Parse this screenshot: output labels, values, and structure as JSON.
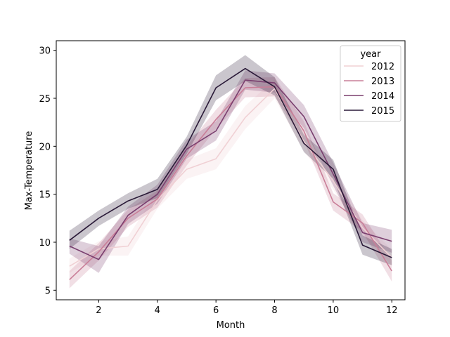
{
  "chart_data": {
    "type": "line",
    "title": "",
    "xlabel": "Month",
    "ylabel": "Max-Temperature",
    "xlim": [
      0.55,
      12.45
    ],
    "ylim": [
      4.0,
      31.0
    ],
    "xticks": [
      2,
      4,
      6,
      8,
      10,
      12
    ],
    "yticks": [
      5,
      10,
      15,
      20,
      25,
      30
    ],
    "grid": false,
    "legend": {
      "title": "year",
      "position": "top-right"
    },
    "x": [
      1,
      2,
      3,
      4,
      5,
      6,
      7,
      8,
      9,
      10,
      11,
      12
    ],
    "series": [
      {
        "name": "2012",
        "color": "#f0d0d4",
        "values": [
          7.5,
          9.3,
          9.6,
          14.4,
          17.6,
          18.7,
          23.0,
          26.0,
          20.5,
          16.4,
          11.5,
          8.4
        ],
        "ci_low": [
          6.8,
          8.6,
          8.6,
          13.5,
          16.6,
          17.6,
          21.8,
          25.0,
          19.5,
          15.5,
          10.7,
          7.6
        ],
        "ci_high": [
          8.3,
          10.1,
          10.6,
          15.3,
          18.6,
          19.8,
          24.2,
          27.0,
          21.5,
          17.3,
          12.3,
          9.2
        ]
      },
      {
        "name": "2013",
        "color": "#c97e98",
        "values": [
          6.1,
          9.0,
          12.5,
          14.5,
          19.0,
          22.8,
          26.1,
          26.2,
          21.6,
          14.2,
          12.0,
          7.0
        ],
        "ci_low": [
          5.2,
          8.1,
          11.6,
          13.6,
          18.0,
          21.8,
          25.1,
          25.2,
          20.6,
          13.3,
          11.1,
          5.9
        ],
        "ci_high": [
          7.0,
          9.9,
          13.4,
          15.4,
          20.0,
          23.8,
          27.1,
          27.2,
          22.6,
          15.1,
          12.9,
          8.1
        ]
      },
      {
        "name": "2014",
        "color": "#7a3f6f",
        "values": [
          9.6,
          8.2,
          12.8,
          15.0,
          19.7,
          21.6,
          26.9,
          26.6,
          23.1,
          17.1,
          11.0,
          10.1
        ],
        "ci_low": [
          8.8,
          6.8,
          11.9,
          14.0,
          18.7,
          20.6,
          25.9,
          25.6,
          21.9,
          15.9,
          10.0,
          8.9
        ],
        "ci_high": [
          10.4,
          9.6,
          13.7,
          16.0,
          20.7,
          22.6,
          27.9,
          27.6,
          24.3,
          18.3,
          12.0,
          11.3
        ]
      },
      {
        "name": "2015",
        "color": "#2a1a38",
        "values": [
          10.2,
          12.5,
          14.3,
          15.5,
          20.1,
          26.1,
          28.1,
          26.2,
          20.3,
          17.6,
          9.7,
          8.4
        ],
        "ci_low": [
          9.3,
          11.7,
          13.5,
          14.6,
          19.2,
          24.8,
          26.8,
          25.3,
          19.4,
          16.6,
          8.7,
          7.6
        ],
        "ci_high": [
          11.2,
          13.3,
          15.1,
          16.6,
          21.0,
          27.4,
          29.5,
          27.2,
          21.2,
          18.6,
          10.7,
          9.3
        ]
      }
    ]
  }
}
